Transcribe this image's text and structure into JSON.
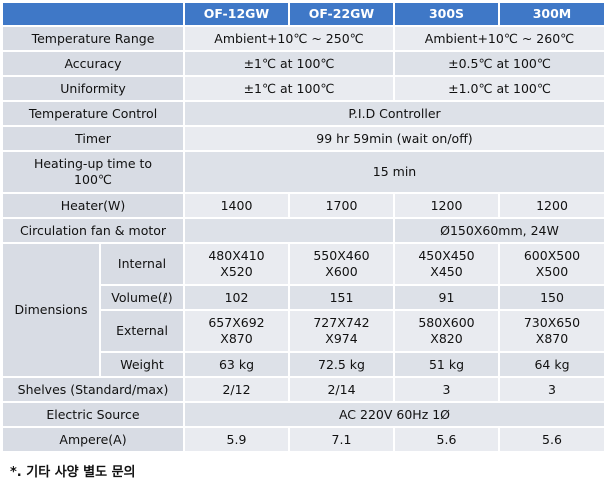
{
  "header": {
    "c1": "OF-12GW",
    "c2": "OF-22GW",
    "c3": "300S",
    "c4": "300M"
  },
  "rows": {
    "temp_range": {
      "label": "Temperature  Range",
      "v12": "Ambient+10℃  ~ 250℃",
      "v34": "Ambient+10℃  ~ 260℃"
    },
    "accuracy": {
      "label": "Accuracy",
      "v12": "±1℃  at 100℃",
      "v34": "±0.5℃  at 100℃"
    },
    "uniformity": {
      "label": "Uniformity",
      "v12": "±1℃  at 100℃",
      "v34": "±1.0℃  at 100℃"
    },
    "temp_control": {
      "label": "Temperature  Control",
      "value": "P.I.D Controller"
    },
    "timer": {
      "label": "Timer",
      "value": "99 hr 59min  (wait on/off)"
    },
    "heating_up": {
      "label1": "Heating-up time  to",
      "label2": "100℃",
      "value": "15 min"
    },
    "heater": {
      "label": "Heater(W)",
      "c1": "1400",
      "c2": "1700",
      "c3": "1200",
      "c4": "1200"
    },
    "fan": {
      "label": "Circulation fan & motor",
      "value": "Ø150X60mm,  24W"
    },
    "dimensions": {
      "label": "Dimensions",
      "internal": {
        "label": "Internal",
        "c1a": "480X410",
        "c1b": "X520",
        "c2a": "550X460",
        "c2b": "X600",
        "c3a": "450X450",
        "c3b": "X450",
        "c4a": "600X500",
        "c4b": "X500"
      },
      "volume": {
        "label": "Volume(ℓ)",
        "c1": "102",
        "c2": "151",
        "c3": "91",
        "c4": "150"
      },
      "external": {
        "label": "External",
        "c1a": "657X692",
        "c1b": "X870",
        "c2a": "727X742",
        "c2b": "X974",
        "c3a": "580X600",
        "c3b": "X820",
        "c4a": "730X650",
        "c4b": "X870"
      },
      "weight": {
        "label": "Weight",
        "c1": "63 kg",
        "c2": "72.5 kg",
        "c3": "51 kg",
        "c4": "64 kg"
      }
    },
    "shelves": {
      "label": "Shelves (Standard/max)",
      "c1": "2/12",
      "c2": "2/14",
      "c3": "3",
      "c4": "3"
    },
    "electric": {
      "label": "Electric Source",
      "value": "AC 220V 60Hz 1Ø"
    },
    "ampere": {
      "label": "Ampere(A)",
      "c1": "5.9",
      "c2": "7.1",
      "c3": "5.6",
      "c4": "5.6"
    }
  },
  "footnote": "*. 기타 사양 별도 문의",
  "colors": {
    "header_bg": "#3f78c7",
    "label_bg": "#d8dce4",
    "value_bg": "#e9ebf0",
    "value_bg_alt": "#dde1e8"
  }
}
